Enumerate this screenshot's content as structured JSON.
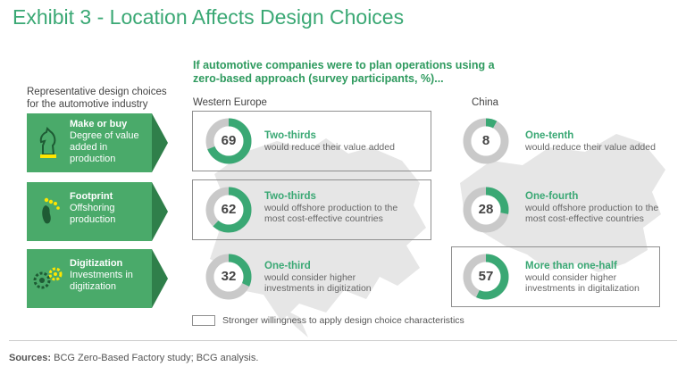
{
  "header": {
    "title": "Exhibit 3 - Location Affects Design Choices",
    "subtitle": "If automotive companies were to plan operations using a zero-based approach (survey participants, %)..."
  },
  "left_label": "Representative design choices for the automotive industry",
  "regions": {
    "western_europe": "Western Europe",
    "china": "China"
  },
  "colors": {
    "accent": "#3aa874",
    "card": "#4aaa6a",
    "arrow": "#2f7f4a",
    "donut_fill": "#3aa874",
    "donut_track": "#c9c9c9",
    "box_border": "#8f8f8f",
    "map": "#e6e6e6"
  },
  "design_choices": [
    {
      "title": "Make or buy",
      "desc": "Degree of value added in production",
      "icon": "chess-knight-icon"
    },
    {
      "title": "Footprint",
      "desc": "Offshoring production",
      "icon": "footprint-icon"
    },
    {
      "title": "Digitization",
      "desc": "Investments in digitization",
      "icon": "gears-icon"
    }
  ],
  "western_europe": [
    {
      "value": 69,
      "headline": "Two-thirds",
      "text": "would reduce their value added",
      "highlighted": true
    },
    {
      "value": 62,
      "headline": "Two-thirds",
      "text": "would offshore production to the most cost-effective countries",
      "highlighted": true
    },
    {
      "value": 32,
      "headline": "One-third",
      "text": "would consider higher investments in digitization",
      "highlighted": false
    }
  ],
  "china": [
    {
      "value": 8,
      "headline": "One-tenth",
      "text": "would reduce their value added",
      "highlighted": false
    },
    {
      "value": 28,
      "headline": "One-fourth",
      "text": "would offshore production to the most cost-effective countries",
      "highlighted": false
    },
    {
      "value": 57,
      "headline": "More than one-half",
      "text": "would consider higher investments in digitalization",
      "highlighted": true
    }
  ],
  "legend": "Stronger willingness to apply design choice characteristics",
  "sources": {
    "label": "Sources:",
    "text": " BCG Zero-Based Factory study; BCG analysis."
  }
}
